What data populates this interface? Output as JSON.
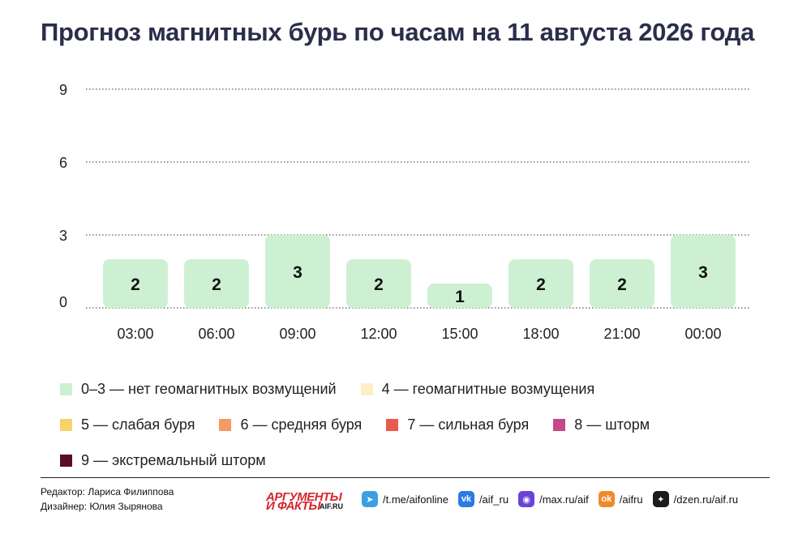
{
  "chart_data": {
    "type": "bar",
    "title": "Прогноз магнитных бурь по часам на 11 августа 2026 года",
    "categories": [
      "03:00",
      "06:00",
      "09:00",
      "12:00",
      "15:00",
      "18:00",
      "21:00",
      "00:00"
    ],
    "values": [
      2,
      2,
      3,
      2,
      1,
      2,
      2,
      3
    ],
    "data_labels": [
      "2",
      "2",
      "3",
      "2",
      "1",
      "2",
      "2",
      "3"
    ],
    "yticks": [
      "0",
      "3",
      "6",
      "9"
    ],
    "ylim": [
      0,
      9
    ],
    "grid": true,
    "bar_color": "#cdf0d3"
  },
  "legend": [
    [
      {
        "label": "0–3 — нет геомагнитных возмущений",
        "color": "#cdf0d3"
      },
      {
        "label": "4 — геомагнитные возмущения",
        "color": "#fdf0c4"
      }
    ],
    [
      {
        "label": "5 — слабая буря",
        "color": "#f8d36a"
      },
      {
        "label": "6 — средняя буря",
        "color": "#f49a64"
      },
      {
        "label": "7 — сильная буря",
        "color": "#ea5a4e"
      },
      {
        "label": "8 — шторм",
        "color": "#c4488a"
      }
    ],
    [
      {
        "label": "9 — экстремальный шторм",
        "color": "#5a0a2a"
      }
    ]
  ],
  "footer": {
    "editor": "Редактор: Лариса Филиппова",
    "designer": "Дизайнер: Юлия Зырянова",
    "logo_top": "АРГУМЕНТЫ",
    "logo_bottom": "И ФАКТЫ",
    "logo_site": "AIF.RU",
    "socials": [
      {
        "icon": "telegram-icon",
        "glyph": "➤",
        "color": "#3d9fe0",
        "text": "/t.me/aifonline"
      },
      {
        "icon": "vk-icon",
        "glyph": "vk",
        "color": "#2a7be4",
        "text": "/aif_ru"
      },
      {
        "icon": "max-icon",
        "glyph": "◉",
        "color": "#6a43d8",
        "text": "/max.ru/aif"
      },
      {
        "icon": "ok-icon",
        "glyph": "ok",
        "color": "#ef8a2b",
        "text": "/aifru"
      },
      {
        "icon": "dzen-icon",
        "glyph": "✦",
        "color": "#1c1c1c",
        "text": "/dzen.ru/aif.ru"
      }
    ]
  }
}
